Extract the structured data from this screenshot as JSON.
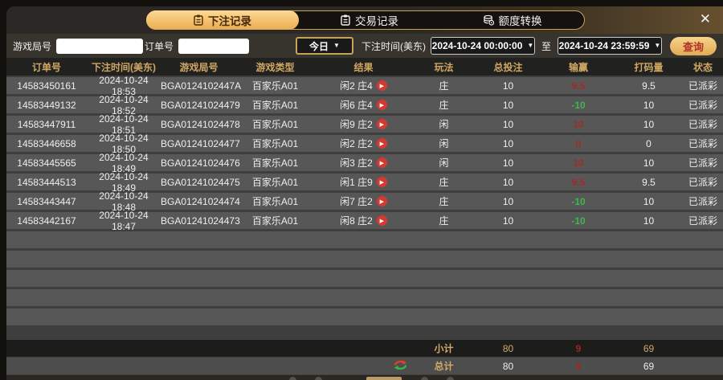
{
  "tabs": {
    "bet_records": "下注记录",
    "transaction_records": "交易记录",
    "credit_transfer": "额度转换"
  },
  "icons": {
    "close": "✕",
    "caret": "▼",
    "play": "▶"
  },
  "filters": {
    "game_round_label": "游戏局号",
    "game_round_value": "",
    "order_no_label": "订单号",
    "order_no_value": "",
    "range_preset": "今日",
    "bet_time_label": "下注时间(美东)",
    "start_time": "2024-10-24 00:00:00",
    "to_label": "至",
    "end_time": "2024-10-24 23:59:59",
    "search_button": "查询"
  },
  "table": {
    "headers": [
      "订单号",
      "下注时间(美东)",
      "游戏局号",
      "游戏类型",
      "结果",
      "玩法",
      "总投注",
      "输赢",
      "打码量",
      "状态"
    ],
    "empty_row_count": 5,
    "rows": [
      {
        "order": "14583450161",
        "time": "2024-10-24 18:53",
        "round": "BGA0124102447A",
        "game": "百家乐A01",
        "result": "闲2 庄4",
        "play": "庄",
        "bet": "10",
        "winloss": "9.5",
        "trend": "win",
        "turnover": "9.5",
        "status": "已派彩"
      },
      {
        "order": "14583449132",
        "time": "2024-10-24 18:52",
        "round": "BGA01241024479",
        "game": "百家乐A01",
        "result": "闲6 庄4",
        "play": "庄",
        "bet": "10",
        "winloss": "-10",
        "trend": "loss",
        "turnover": "10",
        "status": "已派彩"
      },
      {
        "order": "14583447911",
        "time": "2024-10-24 18:51",
        "round": "BGA01241024478",
        "game": "百家乐A01",
        "result": "闲9 庄2",
        "play": "闲",
        "bet": "10",
        "winloss": "10",
        "trend": "win",
        "turnover": "10",
        "status": "已派彩"
      },
      {
        "order": "14583446658",
        "time": "2024-10-24 18:50",
        "round": "BGA01241024477",
        "game": "百家乐A01",
        "result": "闲2 庄2",
        "play": "闲",
        "bet": "10",
        "winloss": "0",
        "trend": "win",
        "turnover": "0",
        "status": "已派彩"
      },
      {
        "order": "14583445565",
        "time": "2024-10-24 18:49",
        "round": "BGA01241024476",
        "game": "百家乐A01",
        "result": "闲3 庄2",
        "play": "闲",
        "bet": "10",
        "winloss": "10",
        "trend": "win",
        "turnover": "10",
        "status": "已派彩"
      },
      {
        "order": "14583444513",
        "time": "2024-10-24 18:49",
        "round": "BGA01241024475",
        "game": "百家乐A01",
        "result": "闲1 庄9",
        "play": "庄",
        "bet": "10",
        "winloss": "9.5",
        "trend": "win",
        "turnover": "9.5",
        "status": "已派彩"
      },
      {
        "order": "14583443447",
        "time": "2024-10-24 18:48",
        "round": "BGA01241024474",
        "game": "百家乐A01",
        "result": "闲7 庄2",
        "play": "庄",
        "bet": "10",
        "winloss": "-10",
        "trend": "loss",
        "turnover": "10",
        "status": "已派彩"
      },
      {
        "order": "14583442167",
        "time": "2024-10-24 18:47",
        "round": "BGA01241024473",
        "game": "百家乐A01",
        "result": "闲8 庄2",
        "play": "庄",
        "bet": "10",
        "winloss": "-10",
        "trend": "loss",
        "turnover": "10",
        "status": "已派彩"
      }
    ]
  },
  "summary": {
    "subtotal_label": "小计",
    "subtotal": {
      "bet": "80",
      "winloss": "9",
      "turnover": "69"
    },
    "total_label": "总计",
    "total": {
      "bet": "80",
      "winloss": "9",
      "turnover": "69"
    }
  },
  "colors": {
    "win_red": "#a02c26",
    "loss_green": "#3eb94d",
    "gold_text": "#cfa763",
    "tab_gold": "#e9ac52"
  }
}
